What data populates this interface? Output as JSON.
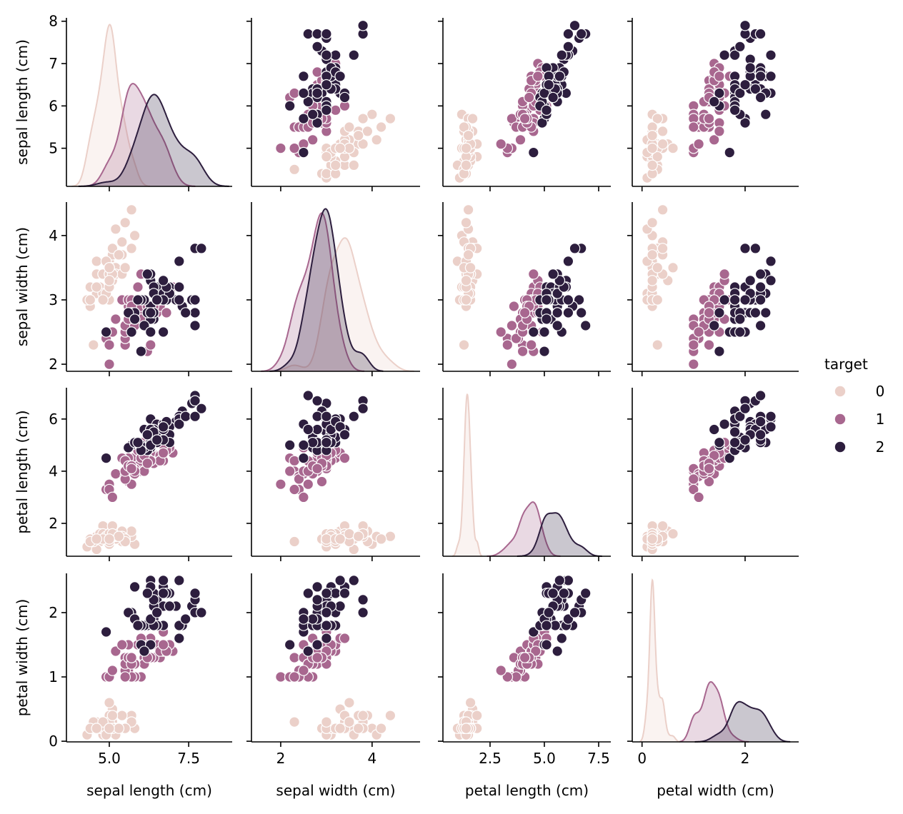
{
  "chart_data": {
    "type": "scatter",
    "subtype": "pairplot",
    "title": "",
    "variables": [
      "sepal length (cm)",
      "sepal width (cm)",
      "petal length (cm)",
      "petal width (cm)"
    ],
    "diagonal": "kde",
    "hue": "target",
    "legend": {
      "title": "target",
      "placement": "right",
      "entries": [
        {
          "label": "0",
          "color": "#ebd0c9"
        },
        {
          "label": "1",
          "color": "#a8678f"
        },
        {
          "label": "2",
          "color": "#2d1e3e"
        }
      ]
    },
    "axes": [
      {
        "name": "sepal length (cm)",
        "range": [
          3.65,
          8.87
        ],
        "yrange": [
          4.1,
          8.08
        ],
        "xticks": [
          {
            "v": 5.0,
            "label": "5.0"
          },
          {
            "v": 7.5,
            "label": "7.5"
          }
        ],
        "yticks": [
          {
            "v": 5,
            "label": "5"
          },
          {
            "v": 6,
            "label": "6"
          },
          {
            "v": 7,
            "label": "7"
          },
          {
            "v": 8,
            "label": "8"
          }
        ]
      },
      {
        "name": "sepal width (cm)",
        "range": [
          1.36,
          5.05
        ],
        "yrange": [
          1.89,
          4.52
        ],
        "xticks": [
          {
            "v": 2,
            "label": "2"
          },
          {
            "v": 4,
            "label": "4"
          }
        ],
        "yticks": [
          {
            "v": 2,
            "label": "2"
          },
          {
            "v": 3,
            "label": "3"
          },
          {
            "v": 4,
            "label": "4"
          }
        ]
      },
      {
        "name": "petal length (cm)",
        "range": [
          0.33,
          8.06
        ],
        "yrange": [
          0.74,
          7.2
        ],
        "xticks": [
          {
            "v": 2.5,
            "label": "2.5"
          },
          {
            "v": 5.0,
            "label": "5.0"
          },
          {
            "v": 7.5,
            "label": "7.5"
          }
        ],
        "yticks": [
          {
            "v": 2,
            "label": "2"
          },
          {
            "v": 4,
            "label": "4"
          },
          {
            "v": 6,
            "label": "6"
          }
        ]
      },
      {
        "name": "petal width (cm)",
        "range": [
          -0.19,
          3.04
        ],
        "yrange": [
          -0.01,
          2.61
        ],
        "xticks": [
          {
            "v": 0,
            "label": "0"
          },
          {
            "v": 2,
            "label": "2"
          }
        ],
        "yticks": [
          {
            "v": 0,
            "label": "0"
          },
          {
            "v": 1,
            "label": "1"
          },
          {
            "v": 2,
            "label": "2"
          }
        ]
      }
    ],
    "grid": false,
    "data": [
      [
        5.1,
        3.5,
        1.4,
        0.2,
        0
      ],
      [
        4.9,
        3.0,
        1.4,
        0.2,
        0
      ],
      [
        4.7,
        3.2,
        1.3,
        0.2,
        0
      ],
      [
        4.6,
        3.1,
        1.5,
        0.2,
        0
      ],
      [
        5.0,
        3.6,
        1.4,
        0.2,
        0
      ],
      [
        5.4,
        3.9,
        1.7,
        0.4,
        0
      ],
      [
        4.6,
        3.4,
        1.4,
        0.3,
        0
      ],
      [
        5.0,
        3.4,
        1.5,
        0.2,
        0
      ],
      [
        4.4,
        2.9,
        1.4,
        0.2,
        0
      ],
      [
        4.9,
        3.1,
        1.5,
        0.1,
        0
      ],
      [
        5.4,
        3.7,
        1.5,
        0.2,
        0
      ],
      [
        4.8,
        3.4,
        1.6,
        0.2,
        0
      ],
      [
        4.8,
        3.0,
        1.4,
        0.1,
        0
      ],
      [
        4.3,
        3.0,
        1.1,
        0.1,
        0
      ],
      [
        5.8,
        4.0,
        1.2,
        0.2,
        0
      ],
      [
        5.7,
        4.4,
        1.5,
        0.4,
        0
      ],
      [
        5.4,
        3.9,
        1.3,
        0.4,
        0
      ],
      [
        5.1,
        3.5,
        1.4,
        0.3,
        0
      ],
      [
        5.7,
        3.8,
        1.7,
        0.3,
        0
      ],
      [
        5.1,
        3.8,
        1.5,
        0.3,
        0
      ],
      [
        5.4,
        3.4,
        1.7,
        0.2,
        0
      ],
      [
        5.1,
        3.7,
        1.5,
        0.4,
        0
      ],
      [
        4.6,
        3.6,
        1.0,
        0.2,
        0
      ],
      [
        5.1,
        3.3,
        1.7,
        0.5,
        0
      ],
      [
        4.8,
        3.4,
        1.9,
        0.2,
        0
      ],
      [
        5.0,
        3.0,
        1.6,
        0.2,
        0
      ],
      [
        5.0,
        3.4,
        1.6,
        0.4,
        0
      ],
      [
        5.2,
        3.5,
        1.5,
        0.2,
        0
      ],
      [
        5.2,
        3.4,
        1.4,
        0.2,
        0
      ],
      [
        4.7,
        3.2,
        1.6,
        0.2,
        0
      ],
      [
        4.8,
        3.1,
        1.6,
        0.2,
        0
      ],
      [
        5.4,
        3.4,
        1.5,
        0.4,
        0
      ],
      [
        5.2,
        4.1,
        1.5,
        0.1,
        0
      ],
      [
        5.5,
        4.2,
        1.4,
        0.2,
        0
      ],
      [
        4.9,
        3.1,
        1.5,
        0.2,
        0
      ],
      [
        5.0,
        3.2,
        1.2,
        0.2,
        0
      ],
      [
        5.5,
        3.5,
        1.3,
        0.2,
        0
      ],
      [
        4.9,
        3.6,
        1.4,
        0.1,
        0
      ],
      [
        4.4,
        3.0,
        1.3,
        0.2,
        0
      ],
      [
        5.1,
        3.4,
        1.5,
        0.2,
        0
      ],
      [
        5.0,
        3.5,
        1.3,
        0.3,
        0
      ],
      [
        4.5,
        2.3,
        1.3,
        0.3,
        0
      ],
      [
        4.4,
        3.2,
        1.3,
        0.2,
        0
      ],
      [
        5.0,
        3.5,
        1.6,
        0.6,
        0
      ],
      [
        5.1,
        3.8,
        1.9,
        0.4,
        0
      ],
      [
        4.8,
        3.0,
        1.4,
        0.3,
        0
      ],
      [
        5.1,
        3.8,
        1.6,
        0.2,
        0
      ],
      [
        4.6,
        3.2,
        1.4,
        0.2,
        0
      ],
      [
        5.3,
        3.7,
        1.5,
        0.2,
        0
      ],
      [
        5.0,
        3.3,
        1.4,
        0.2,
        0
      ],
      [
        7.0,
        3.2,
        4.7,
        1.4,
        1
      ],
      [
        6.4,
        3.2,
        4.5,
        1.5,
        1
      ],
      [
        6.9,
        3.1,
        4.9,
        1.5,
        1
      ],
      [
        5.5,
        2.3,
        4.0,
        1.3,
        1
      ],
      [
        6.5,
        2.8,
        4.6,
        1.5,
        1
      ],
      [
        5.7,
        2.8,
        4.5,
        1.3,
        1
      ],
      [
        6.3,
        3.3,
        4.7,
        1.6,
        1
      ],
      [
        4.9,
        2.4,
        3.3,
        1.0,
        1
      ],
      [
        6.6,
        2.9,
        4.6,
        1.3,
        1
      ],
      [
        5.2,
        2.7,
        3.9,
        1.4,
        1
      ],
      [
        5.0,
        2.0,
        3.5,
        1.0,
        1
      ],
      [
        5.9,
        3.0,
        4.2,
        1.5,
        1
      ],
      [
        6.0,
        2.2,
        4.0,
        1.0,
        1
      ],
      [
        6.1,
        2.9,
        4.7,
        1.4,
        1
      ],
      [
        5.6,
        2.9,
        3.6,
        1.3,
        1
      ],
      [
        6.7,
        3.1,
        4.4,
        1.4,
        1
      ],
      [
        5.6,
        3.0,
        4.5,
        1.5,
        1
      ],
      [
        5.8,
        2.7,
        4.1,
        1.0,
        1
      ],
      [
        6.2,
        2.2,
        4.5,
        1.5,
        1
      ],
      [
        5.6,
        2.5,
        3.9,
        1.1,
        1
      ],
      [
        5.9,
        3.2,
        4.8,
        1.8,
        1
      ],
      [
        6.1,
        2.8,
        4.0,
        1.3,
        1
      ],
      [
        6.3,
        2.5,
        4.9,
        1.5,
        1
      ],
      [
        6.1,
        2.8,
        4.7,
        1.2,
        1
      ],
      [
        6.4,
        2.9,
        4.3,
        1.3,
        1
      ],
      [
        6.6,
        3.0,
        4.4,
        1.4,
        1
      ],
      [
        6.8,
        2.8,
        4.8,
        1.4,
        1
      ],
      [
        6.7,
        3.0,
        5.0,
        1.7,
        1
      ],
      [
        6.0,
        2.9,
        4.5,
        1.5,
        1
      ],
      [
        5.7,
        2.6,
        3.5,
        1.0,
        1
      ],
      [
        5.5,
        2.4,
        3.8,
        1.1,
        1
      ],
      [
        5.5,
        2.4,
        3.7,
        1.0,
        1
      ],
      [
        5.8,
        2.7,
        3.9,
        1.2,
        1
      ],
      [
        6.0,
        2.7,
        5.1,
        1.6,
        1
      ],
      [
        5.4,
        3.0,
        4.5,
        1.5,
        1
      ],
      [
        6.0,
        3.4,
        4.5,
        1.6,
        1
      ],
      [
        6.7,
        3.1,
        4.7,
        1.5,
        1
      ],
      [
        6.3,
        2.3,
        4.4,
        1.3,
        1
      ],
      [
        5.6,
        3.0,
        4.1,
        1.3,
        1
      ],
      [
        5.5,
        2.5,
        4.0,
        1.3,
        1
      ],
      [
        5.5,
        2.6,
        4.4,
        1.2,
        1
      ],
      [
        6.1,
        3.0,
        4.6,
        1.4,
        1
      ],
      [
        5.8,
        2.6,
        4.0,
        1.2,
        1
      ],
      [
        5.0,
        2.3,
        3.3,
        1.0,
        1
      ],
      [
        5.6,
        2.7,
        4.2,
        1.3,
        1
      ],
      [
        5.7,
        3.0,
        4.2,
        1.2,
        1
      ],
      [
        5.7,
        2.9,
        4.2,
        1.3,
        1
      ],
      [
        6.2,
        2.9,
        4.3,
        1.3,
        1
      ],
      [
        5.1,
        2.5,
        3.0,
        1.1,
        1
      ],
      [
        5.7,
        2.8,
        4.1,
        1.3,
        1
      ],
      [
        6.3,
        3.3,
        6.0,
        2.5,
        2
      ],
      [
        5.8,
        2.7,
        5.1,
        1.9,
        2
      ],
      [
        7.1,
        3.0,
        5.9,
        2.1,
        2
      ],
      [
        6.3,
        2.9,
        5.6,
        1.8,
        2
      ],
      [
        6.5,
        3.0,
        5.8,
        2.2,
        2
      ],
      [
        7.6,
        3.0,
        6.6,
        2.1,
        2
      ],
      [
        4.9,
        2.5,
        4.5,
        1.7,
        2
      ],
      [
        7.3,
        2.9,
        6.3,
        1.8,
        2
      ],
      [
        6.7,
        2.5,
        5.8,
        1.8,
        2
      ],
      [
        7.2,
        3.6,
        6.1,
        2.5,
        2
      ],
      [
        6.5,
        3.2,
        5.1,
        2.0,
        2
      ],
      [
        6.4,
        2.7,
        5.3,
        1.9,
        2
      ],
      [
        6.8,
        3.0,
        5.5,
        2.1,
        2
      ],
      [
        5.7,
        2.5,
        5.0,
        2.0,
        2
      ],
      [
        5.8,
        2.8,
        5.1,
        2.4,
        2
      ],
      [
        6.4,
        3.2,
        5.3,
        2.3,
        2
      ],
      [
        6.5,
        3.0,
        5.5,
        1.8,
        2
      ],
      [
        7.7,
        3.8,
        6.7,
        2.2,
        2
      ],
      [
        7.7,
        2.6,
        6.9,
        2.3,
        2
      ],
      [
        6.0,
        2.2,
        5.0,
        1.5,
        2
      ],
      [
        6.9,
        3.2,
        5.7,
        2.3,
        2
      ],
      [
        5.6,
        2.8,
        4.9,
        2.0,
        2
      ],
      [
        7.7,
        2.8,
        6.7,
        2.0,
        2
      ],
      [
        6.3,
        2.7,
        4.9,
        1.8,
        2
      ],
      [
        6.7,
        3.3,
        5.7,
        2.1,
        2
      ],
      [
        7.2,
        3.2,
        6.0,
        1.8,
        2
      ],
      [
        6.2,
        2.8,
        4.8,
        1.8,
        2
      ],
      [
        6.1,
        3.0,
        4.9,
        1.8,
        2
      ],
      [
        6.4,
        2.8,
        5.6,
        2.1,
        2
      ],
      [
        7.2,
        3.0,
        5.8,
        1.6,
        2
      ],
      [
        7.4,
        2.8,
        6.1,
        1.9,
        2
      ],
      [
        7.9,
        3.8,
        6.4,
        2.0,
        2
      ],
      [
        6.4,
        2.8,
        5.6,
        2.2,
        2
      ],
      [
        6.3,
        2.8,
        5.1,
        1.5,
        2
      ],
      [
        6.1,
        2.6,
        5.6,
        1.4,
        2
      ],
      [
        7.7,
        3.0,
        6.1,
        2.3,
        2
      ],
      [
        6.3,
        3.4,
        5.6,
        2.4,
        2
      ],
      [
        6.4,
        3.1,
        5.5,
        1.8,
        2
      ],
      [
        6.0,
        3.0,
        4.8,
        1.8,
        2
      ],
      [
        6.9,
        3.1,
        5.4,
        2.1,
        2
      ],
      [
        6.7,
        3.1,
        5.6,
        2.4,
        2
      ],
      [
        6.9,
        3.1,
        5.1,
        2.3,
        2
      ],
      [
        5.8,
        2.7,
        5.1,
        1.9,
        2
      ],
      [
        6.8,
        3.2,
        5.9,
        2.3,
        2
      ],
      [
        6.7,
        3.3,
        5.7,
        2.5,
        2
      ],
      [
        6.7,
        3.0,
        5.2,
        2.3,
        2
      ],
      [
        6.3,
        2.5,
        5.0,
        1.9,
        2
      ],
      [
        6.5,
        3.0,
        5.2,
        2.0,
        2
      ],
      [
        6.2,
        3.4,
        5.4,
        2.3,
        2
      ],
      [
        5.9,
        3.0,
        5.1,
        1.8,
        2
      ]
    ]
  }
}
